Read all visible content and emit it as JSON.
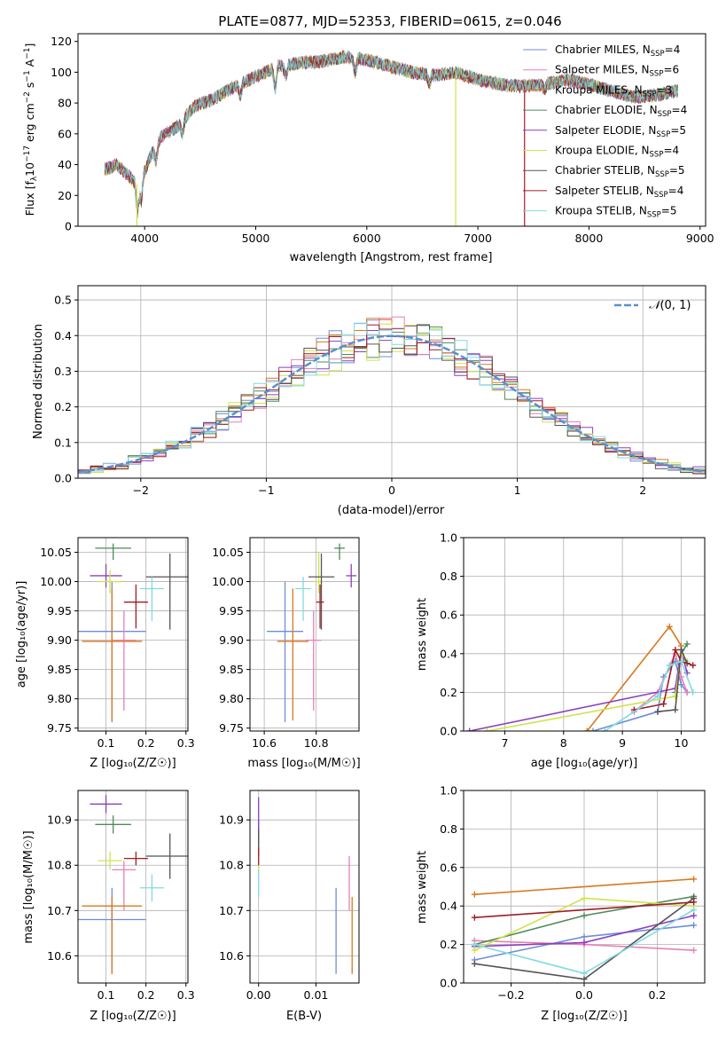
{
  "colors": {
    "Chabrier MILES": "#6d8fd6",
    "Salpeter MILES": "#e87fb8",
    "Kroupa MILES": "#d9781f",
    "Chabrier ELODIE": "#4f8a5a",
    "Salpeter ELODIE": "#8e3fbf",
    "Kroupa ELODIE": "#cfe34a",
    "Chabrier STELIB": "#555555",
    "Salpeter STELIB": "#a01c25",
    "Kroupa STELIB": "#7fdbe0",
    "normal_curve": "#5b8fcc"
  },
  "chart_data": [
    {
      "id": "spectrum",
      "type": "line",
      "title": "PLATE=0877, MJD=52353, FIBERID=0615, z=0.046",
      "xlabel": "wavelength [Angstrom, rest frame]",
      "ylabel": "Flux [f_λ 10^{-17} erg cm^{-2} s^{-1} A^{-1}]",
      "ylabel_parts": {
        "a": "Flux [f",
        "b": "λ",
        "c": "10",
        "d": "−17",
        "e": " erg cm",
        "f": "−2",
        "g": " s",
        "h": "−1",
        "i": " A",
        "j": "−1",
        "k": "]"
      },
      "xlim": [
        3400,
        9050
      ],
      "ylim": [
        0,
        125
      ],
      "xticks": [
        4000,
        5000,
        6000,
        7000,
        8000,
        9000
      ],
      "yticks": [
        0,
        20,
        40,
        60,
        80,
        100,
        120
      ],
      "grid": false,
      "legend_position": "upper right",
      "legend": [
        {
          "model": "Chabrier MILES",
          "label": "Chabrier MILES, N",
          "sub": "SSP",
          "eq": "=4"
        },
        {
          "model": "Salpeter MILES",
          "label": "Salpeter MILES, N",
          "sub": "SSP",
          "eq": "=6"
        },
        {
          "model": "Kroupa MILES",
          "label": "Kroupa MILES, N",
          "sub": "SSP",
          "eq": "=3"
        },
        {
          "model": "Chabrier ELODIE",
          "label": "Chabrier ELODIE, N",
          "sub": "SSP",
          "eq": "=4"
        },
        {
          "model": "Salpeter ELODIE",
          "label": "Salpeter ELODIE, N",
          "sub": "SSP",
          "eq": "=5"
        },
        {
          "model": "Kroupa ELODIE",
          "label": "Kroupa ELODIE, N",
          "sub": "SSP",
          "eq": "=4"
        },
        {
          "model": "Chabrier STELIB",
          "label": "Chabrier STELIB, N",
          "sub": "SSP",
          "eq": "=5"
        },
        {
          "model": "Salpeter STELIB",
          "label": "Salpeter STELIB, N",
          "sub": "SSP",
          "eq": "=4"
        },
        {
          "model": "Kroupa STELIB",
          "label": "Kroupa STELIB, N",
          "sub": "SSP",
          "eq": "=5"
        }
      ],
      "continuum": {
        "x": [
          3650,
          3750,
          3850,
          3950,
          4050,
          4150,
          4300,
          4450,
          4600,
          4800,
          5000,
          5200,
          5400,
          5600,
          5800,
          6000,
          6200,
          6400,
          6600,
          6800,
          7000,
          7200,
          7400,
          7600,
          7800,
          8000,
          8200,
          8400,
          8600,
          8800
        ],
        "y": [
          37,
          40,
          33,
          26,
          45,
          58,
          65,
          78,
          82,
          90,
          97,
          104,
          106,
          107,
          110,
          108,
          104,
          100,
          98,
          100,
          95,
          92,
          91,
          92,
          95,
          92,
          88,
          84,
          85,
          88
        ]
      },
      "spikes": [
        {
          "model": "Kroupa ELODIE",
          "x": 3930,
          "ymin": 0
        },
        {
          "model": "Kroupa ELODIE",
          "x": 6800,
          "ymin": 0
        },
        {
          "model": "Salpeter STELIB",
          "x": 7420,
          "ymin": 0
        }
      ]
    },
    {
      "id": "residuals",
      "type": "histogram",
      "xlabel": "(data-model)/error",
      "ylabel": "Normed distribution",
      "xlim": [
        -2.5,
        2.5
      ],
      "ylim": [
        0,
        0.54
      ],
      "xticks": [
        -2,
        -1,
        0,
        1,
        2
      ],
      "yticks": [
        0.0,
        0.1,
        0.2,
        0.3,
        0.4,
        0.5
      ],
      "grid": true,
      "bin_width": 0.1,
      "legend": {
        "label_prefix": "𝒩",
        "label_suffix": "(0, 1)",
        "position": "upper right"
      }
    },
    {
      "id": "age_vs_Z",
      "type": "errorbar",
      "xlabel": "Z [log₁₀(Z/Z☉)]",
      "ylabel": "age  [log₁₀(age/yr)]",
      "xlim": [
        0.03,
        0.305
      ],
      "ylim": [
        9.745,
        10.075
      ],
      "xticks": [
        0.1,
        0.2,
        0.3
      ],
      "yticks": [
        9.75,
        9.8,
        9.85,
        9.9,
        9.95,
        10.0,
        10.05
      ],
      "grid": true,
      "points": [
        {
          "model": "Chabrier MILES",
          "x": 0.115,
          "xerr": 0.085,
          "y": 9.915,
          "yerr": [
            0.155,
            0.085
          ]
        },
        {
          "model": "Salpeter MILES",
          "x": 0.145,
          "xerr": 0.03,
          "y": 9.9,
          "yerr": [
            0.12,
            0.05
          ]
        },
        {
          "model": "Kroupa MILES",
          "x": 0.115,
          "xerr": 0.075,
          "y": 9.898,
          "yerr": [
            0.135,
            0.09
          ]
        },
        {
          "model": "Chabrier ELODIE",
          "x": 0.118,
          "xerr": 0.045,
          "y": 10.057,
          "yerr": [
            0.02,
            0.008
          ]
        },
        {
          "model": "Salpeter ELODIE",
          "x": 0.1,
          "xerr": 0.04,
          "y": 10.01,
          "yerr": [
            0.02,
            0.02
          ]
        },
        {
          "model": "Kroupa ELODIE",
          "x": 0.11,
          "xerr": 0.03,
          "y": 10.0,
          "yerr": [
            0.02,
            0.02
          ]
        },
        {
          "model": "Chabrier STELIB",
          "x": 0.26,
          "xerr": 0.06,
          "y": 10.008,
          "yerr": [
            0.09,
            0.04
          ]
        },
        {
          "model": "Salpeter STELIB",
          "x": 0.175,
          "xerr": 0.03,
          "y": 9.965,
          "yerr": [
            0.045,
            0.03
          ]
        },
        {
          "model": "Kroupa STELIB",
          "x": 0.215,
          "xerr": 0.03,
          "y": 9.988,
          "yerr": [
            0.055,
            0.02
          ]
        }
      ]
    },
    {
      "id": "age_vs_mass",
      "type": "errorbar",
      "xlabel": "mass [log₁₀(M/M☉)]",
      "ylabel": "",
      "xlim": [
        10.545,
        10.965
      ],
      "ylim": [
        9.745,
        10.075
      ],
      "xticks": [
        10.6,
        10.8
      ],
      "yticks": [
        9.75,
        9.8,
        9.85,
        9.9,
        9.95,
        10.0,
        10.05
      ],
      "grid": true,
      "points": [
        {
          "model": "Chabrier MILES",
          "x": 10.68,
          "xerr": 0.07,
          "y": 9.915,
          "yerr": [
            0.155,
            0.085
          ]
        },
        {
          "model": "Salpeter MILES",
          "x": 10.79,
          "xerr": 0.03,
          "y": 9.9,
          "yerr": [
            0.12,
            0.05
          ]
        },
        {
          "model": "Kroupa MILES",
          "x": 10.71,
          "xerr": 0.06,
          "y": 9.898,
          "yerr": [
            0.135,
            0.09
          ]
        },
        {
          "model": "Chabrier ELODIE",
          "x": 10.89,
          "xerr": 0.02,
          "y": 10.057,
          "yerr": [
            0.02,
            0.008
          ]
        },
        {
          "model": "Salpeter ELODIE",
          "x": 10.935,
          "xerr": 0.02,
          "y": 10.01,
          "yerr": [
            0.02,
            0.02
          ]
        },
        {
          "model": "Kroupa ELODIE",
          "x": 10.81,
          "xerr": 0.02,
          "y": 10.0,
          "yerr": [
            0.02,
            0.05
          ]
        },
        {
          "model": "Chabrier STELIB",
          "x": 10.82,
          "xerr": 0.05,
          "y": 10.008,
          "yerr": [
            0.09,
            0.04
          ]
        },
        {
          "model": "Salpeter STELIB",
          "x": 10.815,
          "xerr": 0.015,
          "y": 9.965,
          "yerr": [
            0.045,
            0.03
          ]
        },
        {
          "model": "Kroupa STELIB",
          "x": 10.75,
          "xerr": 0.03,
          "y": 9.988,
          "yerr": [
            0.055,
            0.02
          ]
        }
      ]
    },
    {
      "id": "weight_vs_age",
      "type": "line",
      "xlabel": "age  [log₁₀(age/yr)]",
      "ylabel": "mass weight",
      "xlim": [
        6.3,
        10.4
      ],
      "ylim": [
        0,
        1.0
      ],
      "xticks": [
        7,
        8,
        9,
        10
      ],
      "yticks": [
        0.0,
        0.2,
        0.4,
        0.6,
        0.8,
        1.0
      ],
      "grid": true,
      "series": [
        {
          "model": "Chabrier MILES",
          "x": [
            8.5,
            9.6,
            9.7,
            9.9,
            10.0,
            10.1
          ],
          "y": [
            0.0,
            0.1,
            0.28,
            0.36,
            0.24,
            0.2
          ]
        },
        {
          "model": "Salpeter MILES",
          "x": [
            9.2,
            9.6,
            9.9,
            10.0,
            10.1
          ],
          "y": [
            0.1,
            0.2,
            0.4,
            0.28,
            0.2
          ]
        },
        {
          "model": "Kroupa MILES",
          "x": [
            8.4,
            9.8,
            10.0
          ],
          "y": [
            0.0,
            0.54,
            0.44
          ]
        },
        {
          "model": "Chabrier ELODIE",
          "x": [
            9.9,
            10.0,
            10.1
          ],
          "y": [
            0.2,
            0.4,
            0.45
          ]
        },
        {
          "model": "Salpeter ELODIE",
          "x": [
            6.4,
            9.9,
            10.0,
            10.1
          ],
          "y": [
            0.0,
            0.22,
            0.42,
            0.3
          ]
        },
        {
          "model": "Kroupa ELODIE",
          "x": [
            6.7,
            9.9,
            10.0,
            10.1
          ],
          "y": [
            0.0,
            0.18,
            0.4,
            0.36
          ]
        },
        {
          "model": "Chabrier STELIB",
          "x": [
            9.6,
            9.9,
            10.0,
            10.1
          ],
          "y": [
            0.1,
            0.11,
            0.42,
            0.35
          ]
        },
        {
          "model": "Salpeter STELIB",
          "x": [
            9.2,
            9.7,
            9.9,
            10.0,
            10.2
          ],
          "y": [
            0.11,
            0.14,
            0.42,
            0.36,
            0.34
          ]
        },
        {
          "model": "Kroupa STELIB",
          "x": [
            8.7,
            9.6,
            9.8,
            10.0,
            10.2
          ],
          "y": [
            0.0,
            0.18,
            0.34,
            0.36,
            0.2
          ]
        }
      ]
    },
    {
      "id": "mass_vs_Z",
      "type": "errorbar",
      "xlabel": "Z [log₁₀(Z/Z☉)]",
      "ylabel": "mass [log₁₀(M/M☉)]",
      "xlim": [
        0.03,
        0.305
      ],
      "ylim": [
        10.54,
        10.965
      ],
      "xticks": [
        0.1,
        0.2,
        0.3
      ],
      "yticks": [
        10.6,
        10.7,
        10.8,
        10.9
      ],
      "grid": true,
      "points": [
        {
          "model": "Chabrier MILES",
          "x": 0.115,
          "xerr": 0.085,
          "y": 10.68,
          "yerr": [
            0.12,
            0.07
          ]
        },
        {
          "model": "Salpeter MILES",
          "x": 0.145,
          "xerr": 0.03,
          "y": 10.79,
          "yerr": [
            0.09,
            0.02
          ]
        },
        {
          "model": "Kroupa MILES",
          "x": 0.115,
          "xerr": 0.075,
          "y": 10.71,
          "yerr": [
            0.15,
            0.02
          ]
        },
        {
          "model": "Chabrier ELODIE",
          "x": 0.118,
          "xerr": 0.045,
          "y": 10.89,
          "yerr": [
            0.02,
            0.02
          ]
        },
        {
          "model": "Salpeter ELODIE",
          "x": 0.1,
          "xerr": 0.04,
          "y": 10.935,
          "yerr": [
            0.02,
            0.02
          ]
        },
        {
          "model": "Kroupa ELODIE",
          "x": 0.11,
          "xerr": 0.03,
          "y": 10.81,
          "yerr": [
            0.02,
            0.02
          ]
        },
        {
          "model": "Chabrier STELIB",
          "x": 0.26,
          "xerr": 0.06,
          "y": 10.82,
          "yerr": [
            0.05,
            0.05
          ]
        },
        {
          "model": "Salpeter STELIB",
          "x": 0.175,
          "xerr": 0.03,
          "y": 10.815,
          "yerr": [
            0.015,
            0.015
          ]
        },
        {
          "model": "Kroupa STELIB",
          "x": 0.215,
          "xerr": 0.03,
          "y": 10.75,
          "yerr": [
            0.03,
            0.03
          ]
        }
      ]
    },
    {
      "id": "mass_vs_ebv",
      "type": "errorbar",
      "xlabel": "E(B-V)",
      "ylabel": "",
      "xlim": [
        -0.0015,
        0.0175
      ],
      "ylim": [
        10.54,
        10.965
      ],
      "xticks": [
        0.0,
        0.01
      ],
      "yticks": [
        10.6,
        10.7,
        10.8,
        10.9
      ],
      "grid": true,
      "points": [
        {
          "model": "Chabrier MILES",
          "x": 0.0135,
          "xerr": 0,
          "y": 10.68,
          "yerr": [
            0.12,
            0.07
          ]
        },
        {
          "model": "Salpeter MILES",
          "x": 0.0158,
          "xerr": 0,
          "y": 10.79,
          "yerr": [
            0.09,
            0.03
          ]
        },
        {
          "model": "Kroupa MILES",
          "x": 0.0163,
          "xerr": 0,
          "y": 10.64,
          "yerr": [
            0.08,
            0.09
          ]
        },
        {
          "model": "Chabrier ELODIE",
          "x": 0.0,
          "xerr": 0,
          "y": 10.88,
          "yerr": [
            0.04,
            0.02
          ]
        },
        {
          "model": "Salpeter ELODIE",
          "x": 0.0,
          "xerr": 0,
          "y": 10.9,
          "yerr": [
            0.05,
            0.05
          ]
        },
        {
          "model": "Kroupa ELODIE",
          "x": 0.0,
          "xerr": 0,
          "y": 10.8,
          "yerr": [
            0.02,
            0.02
          ]
        },
        {
          "model": "Chabrier STELIB",
          "x": 0.0,
          "xerr": 0,
          "y": 10.85,
          "yerr": [
            0.03,
            0.03
          ]
        },
        {
          "model": "Salpeter STELIB",
          "x": 0.0,
          "xerr": 0,
          "y": 10.82,
          "yerr": [
            0.02,
            0.02
          ]
        },
        {
          "model": "Kroupa STELIB",
          "x": 0.0,
          "xerr": 0,
          "y": 10.76,
          "yerr": [
            0.03,
            0.03
          ]
        }
      ]
    },
    {
      "id": "weight_vs_Z",
      "type": "line",
      "xlabel": "Z [log₁₀(Z/Z☉)]",
      "ylabel": "mass weight",
      "xlim": [
        -0.33,
        0.33
      ],
      "ylim": [
        0,
        1.0
      ],
      "xticks": [
        -0.2,
        0.0,
        0.2
      ],
      "yticks": [
        0.0,
        0.2,
        0.4,
        0.6,
        0.8,
        1.0
      ],
      "grid": true,
      "series": [
        {
          "model": "Chabrier MILES",
          "x": [
            -0.3,
            0.0,
            0.3
          ],
          "y": [
            0.12,
            0.24,
            0.3
          ]
        },
        {
          "model": "Salpeter MILES",
          "x": [
            -0.3,
            0.0,
            0.3
          ],
          "y": [
            0.22,
            0.2,
            0.17
          ]
        },
        {
          "model": "Kroupa MILES",
          "x": [
            -0.3,
            0.3
          ],
          "y": [
            0.46,
            0.54
          ]
        },
        {
          "model": "Chabrier ELODIE",
          "x": [
            -0.3,
            0.0,
            0.3
          ],
          "y": [
            0.2,
            0.35,
            0.45
          ]
        },
        {
          "model": "Salpeter ELODIE",
          "x": [
            -0.3,
            0.0,
            0.3
          ],
          "y": [
            0.19,
            0.21,
            0.35
          ]
        },
        {
          "model": "Kroupa ELODIE",
          "x": [
            -0.3,
            0.0,
            0.3
          ],
          "y": [
            0.17,
            0.44,
            0.4
          ]
        },
        {
          "model": "Chabrier STELIB",
          "x": [
            -0.3,
            0.0,
            0.3
          ],
          "y": [
            0.1,
            0.02,
            0.44
          ]
        },
        {
          "model": "Salpeter STELIB",
          "x": [
            -0.3,
            0.3
          ],
          "y": [
            0.34,
            0.42
          ]
        },
        {
          "model": "Kroupa STELIB",
          "x": [
            -0.3,
            0.0,
            0.3
          ],
          "y": [
            0.2,
            0.05,
            0.38
          ]
        }
      ]
    }
  ]
}
